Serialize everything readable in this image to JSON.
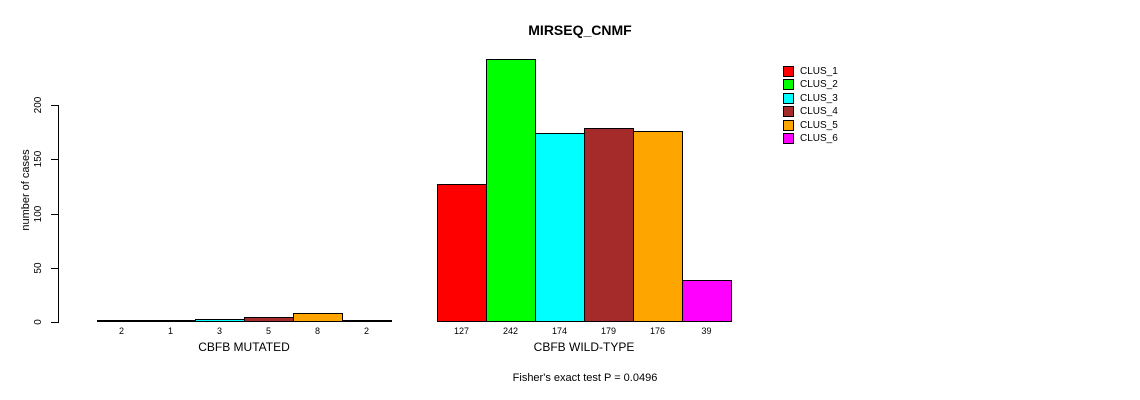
{
  "chart_data": {
    "type": "bar",
    "title": "MIRSEQ_CNMF",
    "ylabel": "number of cases",
    "yticks": [
      0,
      50,
      100,
      150,
      200
    ],
    "ylim": [
      0,
      242
    ],
    "grid": false,
    "legend_position": "top-right",
    "series": [
      {
        "name": "CLUS_1",
        "color": "#FF0000"
      },
      {
        "name": "CLUS_2",
        "color": "#00FF00"
      },
      {
        "name": "CLUS_3",
        "color": "#00FFFF"
      },
      {
        "name": "CLUS_4",
        "color": "#A52A2A"
      },
      {
        "name": "CLUS_5",
        "color": "#FFA500"
      },
      {
        "name": "CLUS_6",
        "color": "#FF00FF"
      }
    ],
    "groups": [
      {
        "label": "CBFB MUTATED",
        "values": [
          2,
          1,
          3,
          5,
          8,
          2
        ]
      },
      {
        "label": "CBFB WILD-TYPE",
        "values": [
          127,
          242,
          174,
          179,
          176,
          39
        ]
      }
    ],
    "annotation": "Fisher's exact test P = 0.0496"
  }
}
